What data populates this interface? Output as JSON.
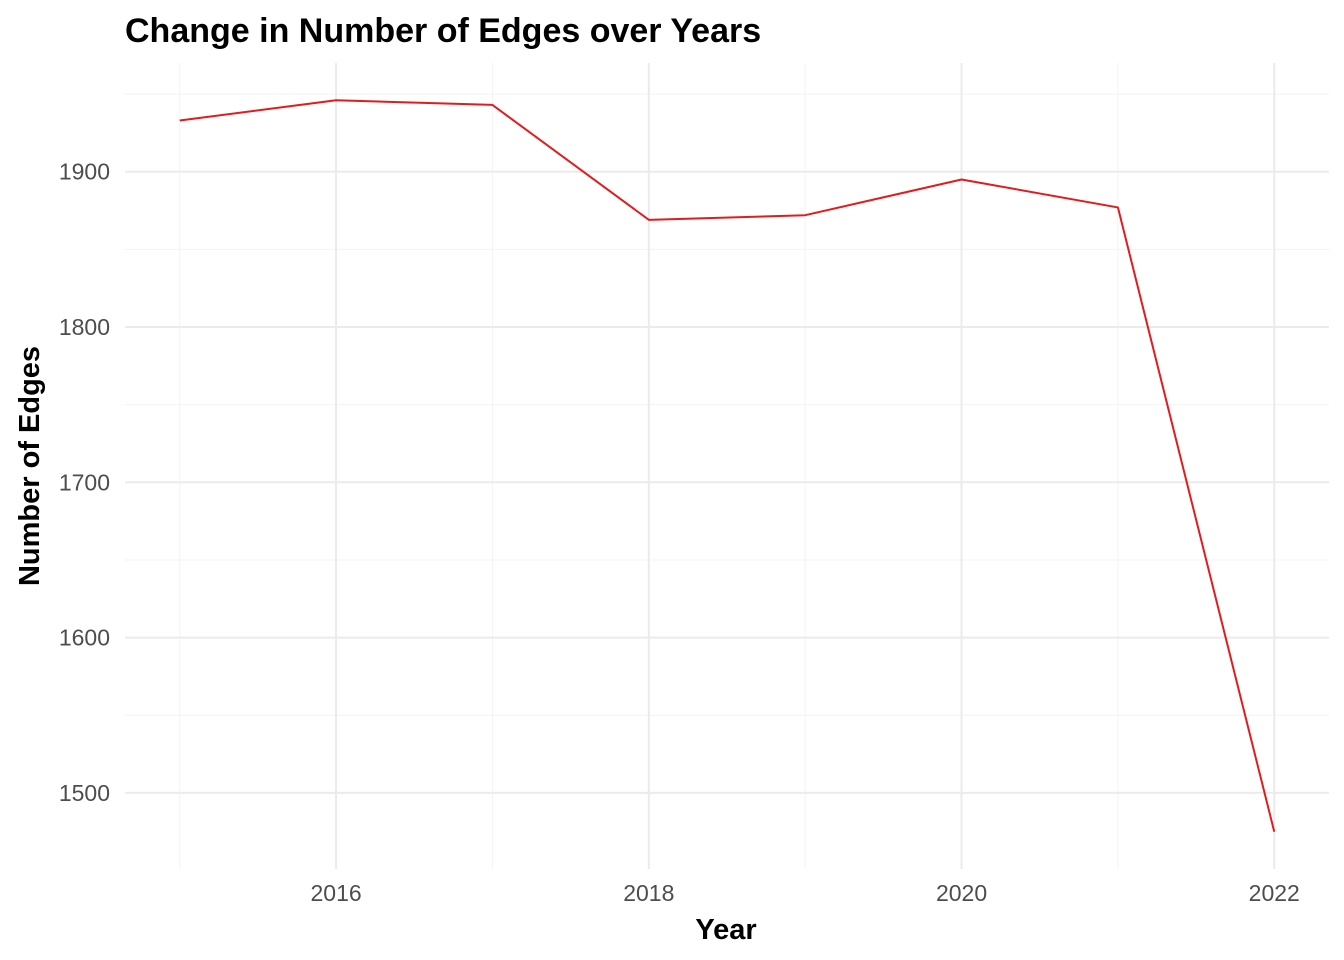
{
  "chart_data": {
    "type": "line",
    "title": "Change in Number of Edges over Years",
    "xlabel": "Year",
    "ylabel": "Number of Edges",
    "x": [
      2015,
      2016,
      2017,
      2018,
      2019,
      2020,
      2021,
      2022
    ],
    "series": [
      {
        "values": [
          1933,
          1946,
          1943,
          1869,
          1872,
          1895,
          1877,
          1475
        ],
        "color": "#e41a1c"
      }
    ],
    "xlim": [
      2014.65,
      2022.35
    ],
    "ylim": [
      1451,
      1970
    ],
    "x_ticks": [
      2016,
      2018,
      2020,
      2022
    ],
    "x_tick_labels": [
      "2016",
      "2018",
      "2020",
      "2022"
    ],
    "y_ticks": [
      1500,
      1600,
      1700,
      1800,
      1900
    ],
    "y_tick_labels": [
      "1500",
      "1600",
      "1700",
      "1800",
      "1900"
    ],
    "x_minor_ticks": [
      2015,
      2017,
      2019,
      2021
    ],
    "y_minor_ticks": [
      1450,
      1550,
      1650,
      1750,
      1850,
      1950
    ],
    "grid": true,
    "legend": "none"
  }
}
